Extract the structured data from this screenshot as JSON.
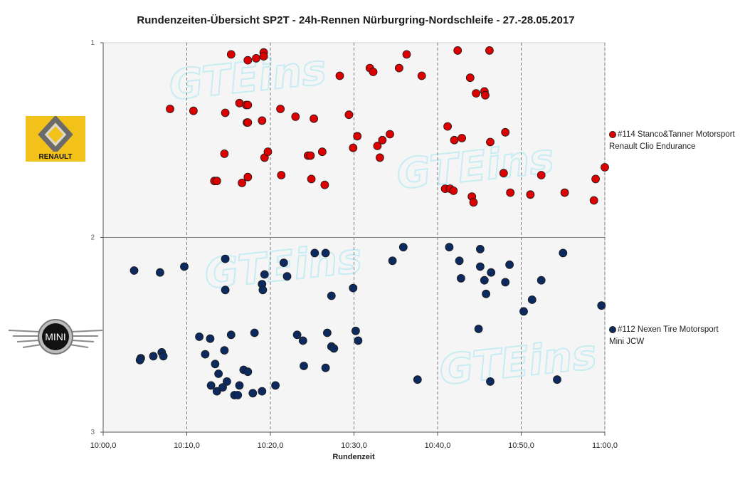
{
  "title": "Rundenzeiten-Übersicht  SP2T  - 24h-Rennen  Nürburgring-Nordschleife  - 27.-28.05.2017",
  "watermark": "GTEins",
  "logos": {
    "renault_text": "RENAULT",
    "mini_text": "MINI"
  },
  "colors": {
    "series1": "#dd0000",
    "series2": "#0d2a5e",
    "grid": "#888888",
    "plot_bg": "#f5f5f5"
  },
  "chart_data": {
    "type": "scatter",
    "xlabel": "Rundenzeit",
    "ylabel": "",
    "xlim": [
      600,
      660
    ],
    "ylim": [
      1,
      3
    ],
    "x_ticks": [
      "10:00,0",
      "10:10,0",
      "10:20,0",
      "10:30,0",
      "10:40,0",
      "10:50,0",
      "11:00,0"
    ],
    "y_ticks": [
      "1",
      "2",
      "3"
    ],
    "grid": "vertical dashed every 10s, horizontal at 2",
    "legend_position": "right",
    "series": [
      {
        "name": "#114 Stanco&Tanner Motorsport",
        "name_line2": "Renault Clio Endurance",
        "color": "#dd0000",
        "points": [
          [
            615.3,
            1.06
          ],
          [
            617.3,
            1.09
          ],
          [
            618.3,
            1.08
          ],
          [
            619.2,
            1.05
          ],
          [
            619.2,
            1.07
          ],
          [
            608.0,
            1.34
          ],
          [
            610.8,
            1.35
          ],
          [
            614.6,
            1.36
          ],
          [
            616.3,
            1.31
          ],
          [
            617.1,
            1.32
          ],
          [
            617.3,
            1.32
          ],
          [
            619.0,
            1.4
          ],
          [
            617.2,
            1.41
          ],
          [
            617.3,
            1.41
          ],
          [
            621.2,
            1.34
          ],
          [
            623.0,
            1.38
          ],
          [
            625.2,
            1.39
          ],
          [
            613.3,
            1.71
          ],
          [
            613.6,
            1.71
          ],
          [
            616.6,
            1.72
          ],
          [
            617.3,
            1.69
          ],
          [
            621.3,
            1.68
          ],
          [
            614.5,
            1.57
          ],
          [
            619.3,
            1.59
          ],
          [
            619.7,
            1.56
          ],
          [
            624.5,
            1.58
          ],
          [
            624.8,
            1.58
          ],
          [
            626.2,
            1.56
          ],
          [
            624.9,
            1.7
          ],
          [
            626.5,
            1.73
          ],
          [
            628.3,
            1.17
          ],
          [
            629.4,
            1.37
          ],
          [
            629.9,
            1.54
          ],
          [
            630.4,
            1.48
          ],
          [
            631.9,
            1.13
          ],
          [
            632.3,
            1.15
          ],
          [
            632.8,
            1.53
          ],
          [
            633.1,
            1.59
          ],
          [
            633.4,
            1.5
          ],
          [
            634.3,
            1.47
          ],
          [
            635.4,
            1.13
          ],
          [
            636.3,
            1.06
          ],
          [
            638.1,
            1.17
          ],
          [
            642.4,
            1.04
          ],
          [
            643.9,
            1.18
          ],
          [
            644.6,
            1.26
          ],
          [
            645.6,
            1.25
          ],
          [
            645.7,
            1.27
          ],
          [
            646.2,
            1.04
          ],
          [
            641.2,
            1.43
          ],
          [
            642.0,
            1.5
          ],
          [
            642.9,
            1.49
          ],
          [
            646.3,
            1.51
          ],
          [
            648.1,
            1.46
          ],
          [
            640.9,
            1.75
          ],
          [
            641.5,
            1.75
          ],
          [
            641.9,
            1.76
          ],
          [
            644.1,
            1.79
          ],
          [
            644.3,
            1.82
          ],
          [
            647.9,
            1.67
          ],
          [
            648.7,
            1.77
          ],
          [
            651.1,
            1.78
          ],
          [
            652.4,
            1.68
          ],
          [
            655.2,
            1.77
          ],
          [
            658.7,
            1.81
          ],
          [
            658.9,
            1.7
          ],
          [
            660.0,
            1.64
          ]
        ]
      },
      {
        "name": "#112 Nexen Tire Motorsport",
        "name_line2": "Mini JCW",
        "color": "#0d2a5e",
        "points": [
          [
            603.7,
            2.17
          ],
          [
            606.8,
            2.18
          ],
          [
            609.7,
            2.15
          ],
          [
            614.6,
            2.11
          ],
          [
            614.6,
            2.27
          ],
          [
            619.3,
            2.19
          ],
          [
            619.0,
            2.24
          ],
          [
            619.1,
            2.27
          ],
          [
            622.0,
            2.2
          ],
          [
            621.6,
            2.13
          ],
          [
            625.3,
            2.08
          ],
          [
            626.6,
            2.08
          ],
          [
            627.3,
            2.3
          ],
          [
            629.9,
            2.26
          ],
          [
            634.6,
            2.12
          ],
          [
            635.9,
            2.05
          ],
          [
            604.5,
            2.62
          ],
          [
            604.4,
            2.63
          ],
          [
            606.0,
            2.61
          ],
          [
            607.0,
            2.59
          ],
          [
            607.2,
            2.61
          ],
          [
            611.5,
            2.51
          ],
          [
            612.2,
            2.6
          ],
          [
            612.8,
            2.52
          ],
          [
            613.4,
            2.65
          ],
          [
            613.8,
            2.7
          ],
          [
            614.5,
            2.58
          ],
          [
            615.3,
            2.5
          ],
          [
            614.8,
            2.74
          ],
          [
            616.3,
            2.76
          ],
          [
            616.8,
            2.68
          ],
          [
            617.3,
            2.69
          ],
          [
            618.1,
            2.49
          ],
          [
            612.9,
            2.76
          ],
          [
            613.6,
            2.79
          ],
          [
            614.3,
            2.77
          ],
          [
            615.7,
            2.81
          ],
          [
            616.1,
            2.81
          ],
          [
            617.9,
            2.8
          ],
          [
            619.0,
            2.79
          ],
          [
            620.6,
            2.76
          ],
          [
            623.2,
            2.5
          ],
          [
            623.9,
            2.53
          ],
          [
            624.0,
            2.66
          ],
          [
            626.6,
            2.67
          ],
          [
            626.8,
            2.49
          ],
          [
            627.3,
            2.56
          ],
          [
            627.6,
            2.57
          ],
          [
            630.2,
            2.48
          ],
          [
            630.5,
            2.53
          ],
          [
            637.6,
            2.73
          ],
          [
            641.4,
            2.05
          ],
          [
            642.6,
            2.12
          ],
          [
            642.8,
            2.21
          ],
          [
            645.1,
            2.06
          ],
          [
            645.1,
            2.15
          ],
          [
            645.6,
            2.22
          ],
          [
            645.8,
            2.29
          ],
          [
            646.4,
            2.18
          ],
          [
            648.1,
            2.23
          ],
          [
            648.6,
            2.14
          ],
          [
            650.3,
            2.38
          ],
          [
            651.3,
            2.32
          ],
          [
            652.4,
            2.22
          ],
          [
            655.0,
            2.08
          ],
          [
            644.9,
            2.47
          ],
          [
            646.3,
            2.74
          ],
          [
            654.3,
            2.73
          ],
          [
            659.6,
            2.35
          ]
        ]
      }
    ]
  }
}
